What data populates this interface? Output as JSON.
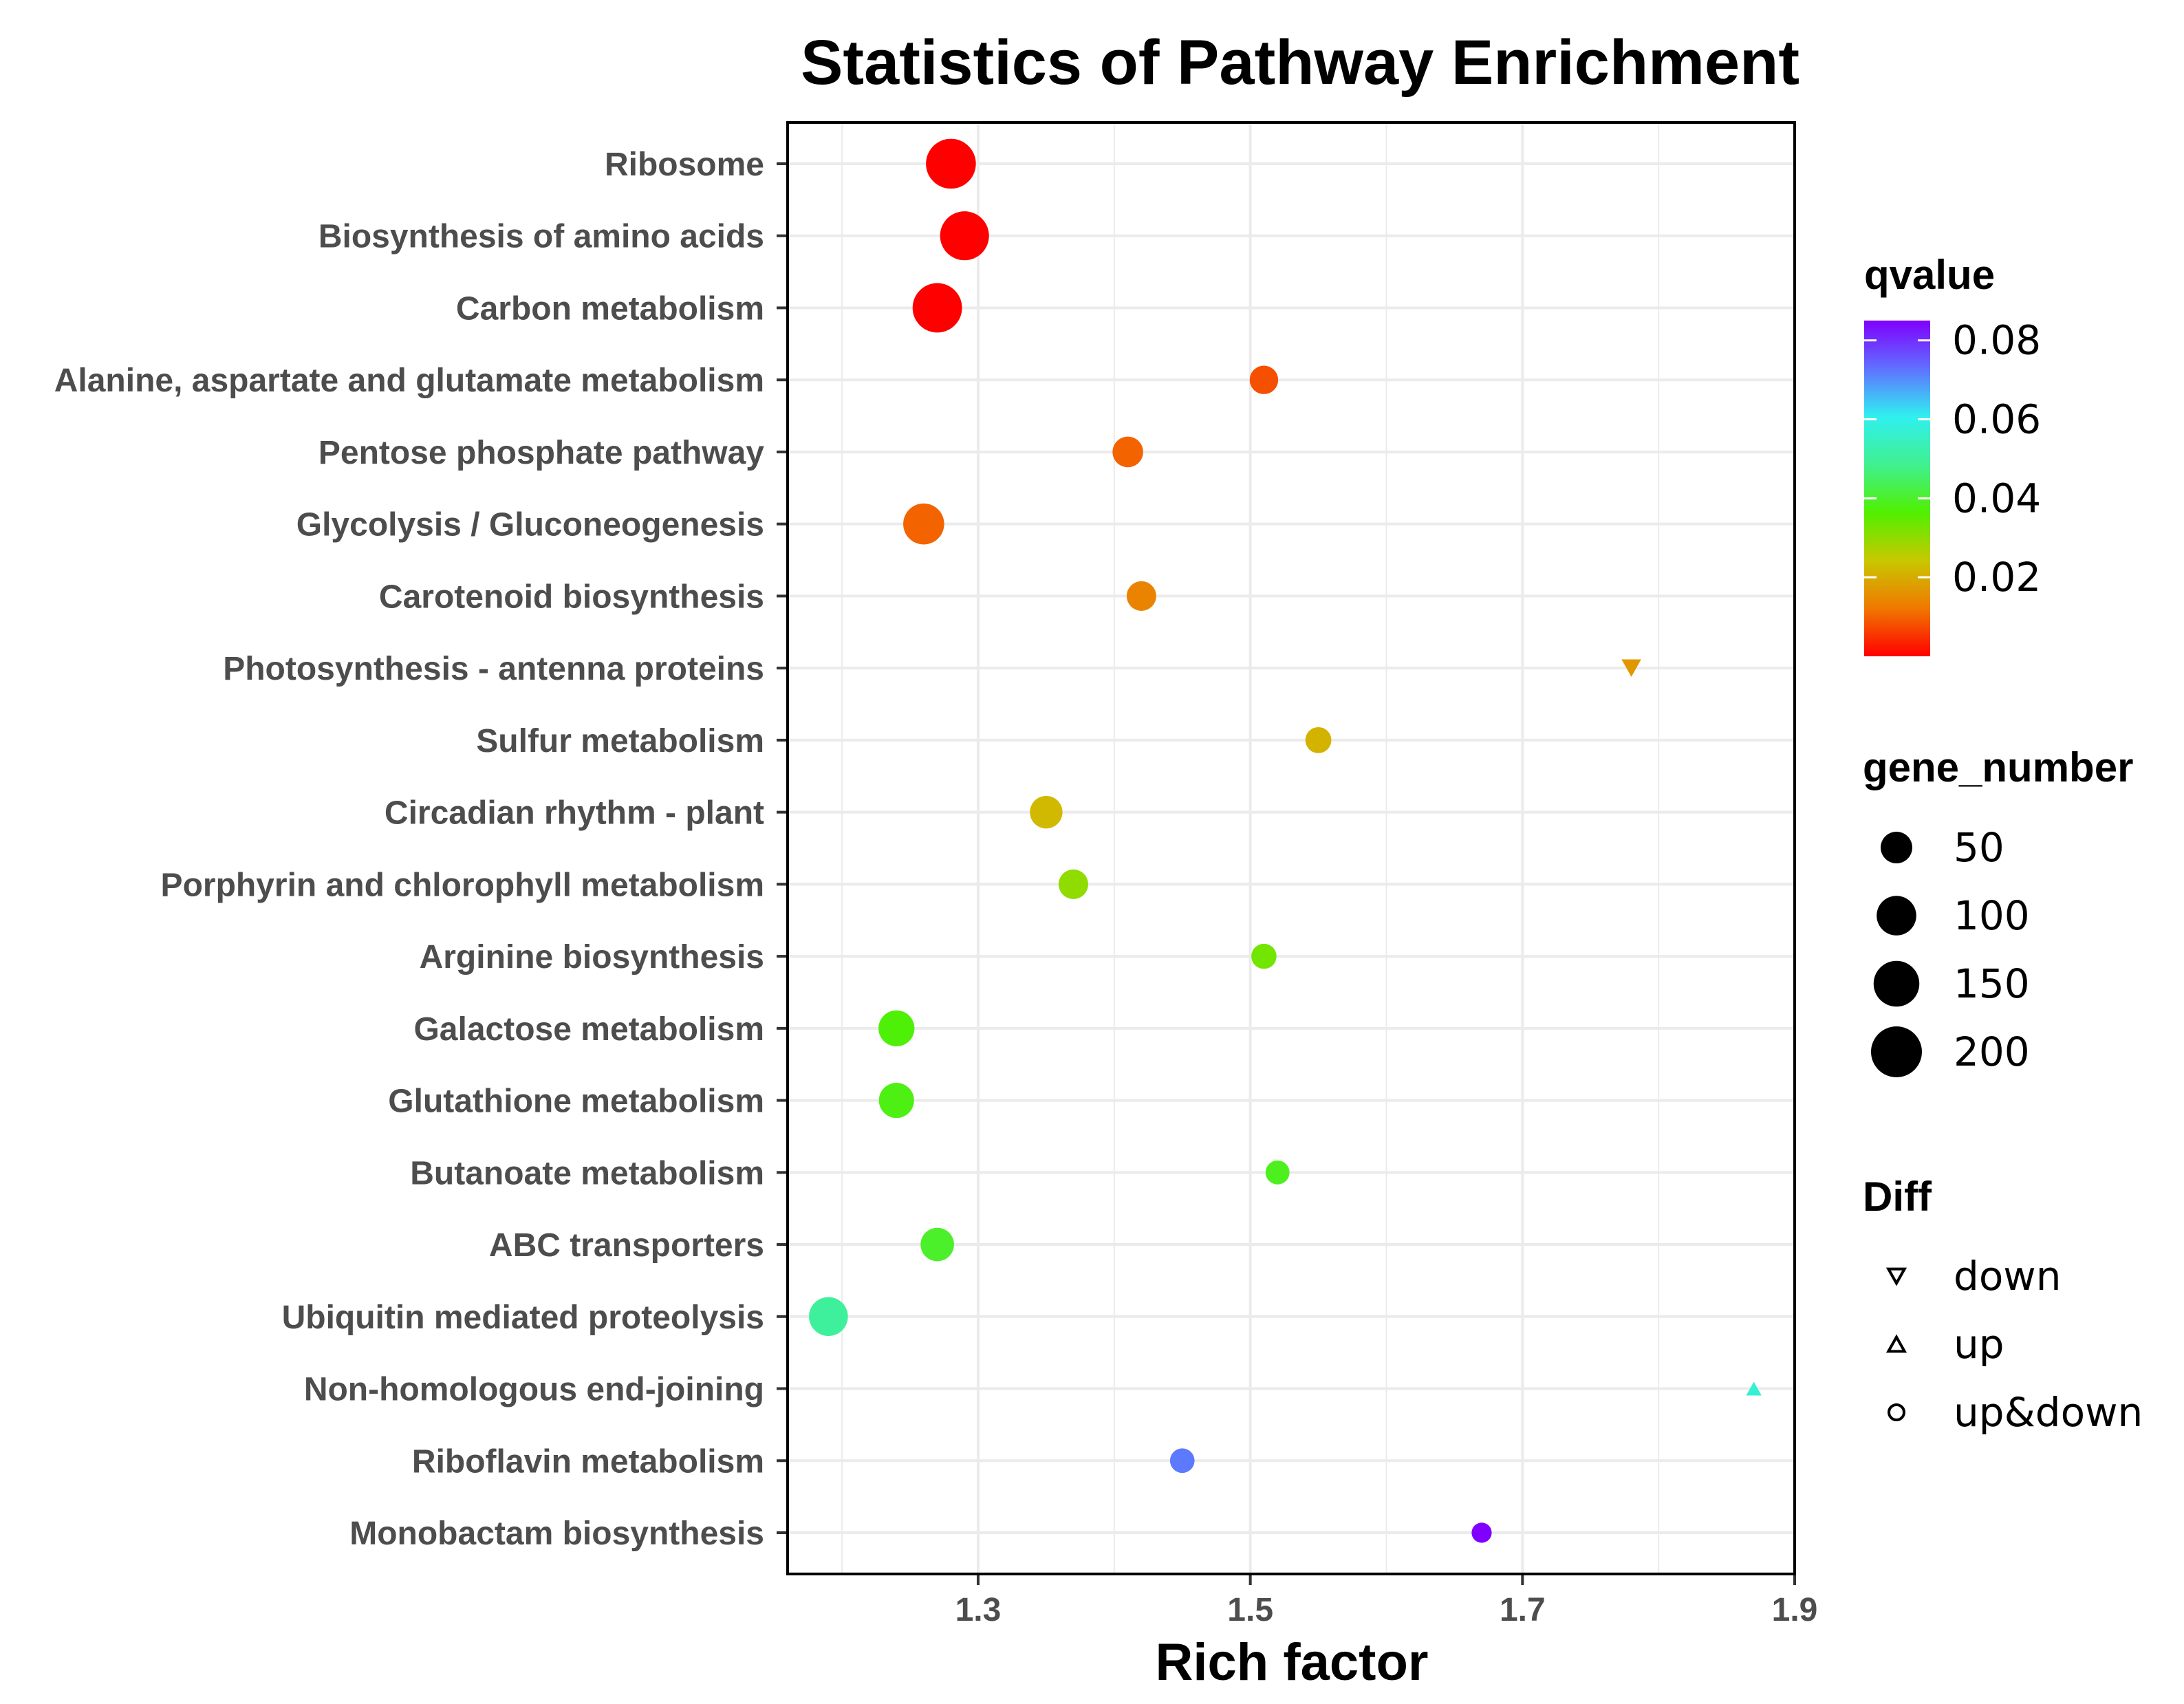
{
  "chart_data": {
    "type": "scatter",
    "title": "Statistics of Pathway Enrichment",
    "xlabel": "Rich factor",
    "ylabel": "",
    "xlim": [
      1.16,
      1.9
    ],
    "xticks": [
      "1.3",
      "1.5",
      "1.7",
      "1.9"
    ],
    "grid": true,
    "categories": [
      "Ribosome",
      "Biosynthesis of amino acids",
      "Carbon metabolism",
      "Alanine, aspartate and glutamate metabolism",
      "Pentose phosphate pathway",
      "Glycolysis / Gluconeogenesis",
      "Carotenoid biosynthesis",
      "Photosynthesis - antenna proteins",
      "Sulfur metabolism",
      "Circadian rhythm - plant",
      "Porphyrin and chlorophyll metabolism",
      "Arginine biosynthesis",
      "Galactose metabolism",
      "Glutathione metabolism",
      "Butanoate metabolism",
      "ABC transporters",
      "Ubiquitin mediated proteolysis",
      "Non-homologous end-joining",
      "Riboflavin metabolism",
      "Monobactam biosynthesis"
    ],
    "points": [
      {
        "pathway": "Ribosome",
        "rich_factor": 1.28,
        "qvalue": 0.0,
        "gene_number": 190,
        "diff": "up&down"
      },
      {
        "pathway": "Biosynthesis of amino acids",
        "rich_factor": 1.29,
        "qvalue": 0.0,
        "gene_number": 180,
        "diff": "up&down"
      },
      {
        "pathway": "Carbon metabolism",
        "rich_factor": 1.27,
        "qvalue": 0.0,
        "gene_number": 185,
        "diff": "up&down"
      },
      {
        "pathway": "Alanine, aspartate and glutamate metabolism",
        "rich_factor": 1.51,
        "qvalue": 0.008,
        "gene_number": 35,
        "diff": "up&down"
      },
      {
        "pathway": "Pentose phosphate pathway",
        "rich_factor": 1.41,
        "qvalue": 0.01,
        "gene_number": 45,
        "diff": "up&down"
      },
      {
        "pathway": "Glycolysis / Gluconeogenesis",
        "rich_factor": 1.26,
        "qvalue": 0.01,
        "gene_number": 110,
        "diff": "up&down"
      },
      {
        "pathway": "Carotenoid biosynthesis",
        "rich_factor": 1.42,
        "qvalue": 0.014,
        "gene_number": 40,
        "diff": "up&down"
      },
      {
        "pathway": "Photosynthesis - antenna proteins",
        "rich_factor": 1.78,
        "qvalue": 0.017,
        "gene_number": 12,
        "diff": "down"
      },
      {
        "pathway": "Sulfur metabolism",
        "rich_factor": 1.55,
        "qvalue": 0.021,
        "gene_number": 25,
        "diff": "up&down"
      },
      {
        "pathway": "Circadian rhythm - plant",
        "rich_factor": 1.35,
        "qvalue": 0.022,
        "gene_number": 55,
        "diff": "up&down"
      },
      {
        "pathway": "Porphyrin and chlorophyll metabolism",
        "rich_factor": 1.37,
        "qvalue": 0.03,
        "gene_number": 40,
        "diff": "up&down"
      },
      {
        "pathway": "Arginine biosynthesis",
        "rich_factor": 1.51,
        "qvalue": 0.033,
        "gene_number": 22,
        "diff": "up&down"
      },
      {
        "pathway": "Galactose metabolism",
        "rich_factor": 1.24,
        "qvalue": 0.037,
        "gene_number": 75,
        "diff": "up&down"
      },
      {
        "pathway": "Glutathione metabolism",
        "rich_factor": 1.24,
        "qvalue": 0.038,
        "gene_number": 70,
        "diff": "up&down"
      },
      {
        "pathway": "Butanoate metabolism",
        "rich_factor": 1.52,
        "qvalue": 0.039,
        "gene_number": 18,
        "diff": "up&down"
      },
      {
        "pathway": "ABC transporters",
        "rich_factor": 1.27,
        "qvalue": 0.04,
        "gene_number": 60,
        "diff": "up&down"
      },
      {
        "pathway": "Ubiquitin mediated proteolysis",
        "rich_factor": 1.19,
        "qvalue": 0.05,
        "gene_number": 95,
        "diff": "up&down"
      },
      {
        "pathway": "Non-homologous end-joining",
        "rich_factor": 1.87,
        "qvalue": 0.057,
        "gene_number": 3,
        "diff": "up"
      },
      {
        "pathway": "Riboflavin metabolism",
        "rich_factor": 1.45,
        "qvalue": 0.072,
        "gene_number": 20,
        "diff": "up&down"
      },
      {
        "pathway": "Monobactam biosynthesis",
        "rich_factor": 1.67,
        "qvalue": 0.085,
        "gene_number": 8,
        "diff": "up&down"
      }
    ],
    "legends": {
      "color": {
        "title": "qvalue",
        "labels": [
          "0.08",
          "0.06",
          "0.04",
          "0.02"
        ],
        "range": [
          0,
          0.085
        ],
        "gradient": [
          "#ff0000",
          "#f07800",
          "#c8c800",
          "#50f000",
          "#40f090",
          "#30f0f0",
          "#6070ff",
          "#8000ff"
        ]
      },
      "size": {
        "title": "gene_number",
        "values": [
          50,
          100,
          150,
          200
        ],
        "labels": [
          "50",
          "100",
          "150",
          "200"
        ]
      },
      "shape": {
        "title": "Diff",
        "items": [
          {
            "label": "down",
            "shape": "triangle-down"
          },
          {
            "label": "up",
            "shape": "triangle-up"
          },
          {
            "label": "up&down",
            "shape": "circle"
          }
        ]
      }
    }
  }
}
